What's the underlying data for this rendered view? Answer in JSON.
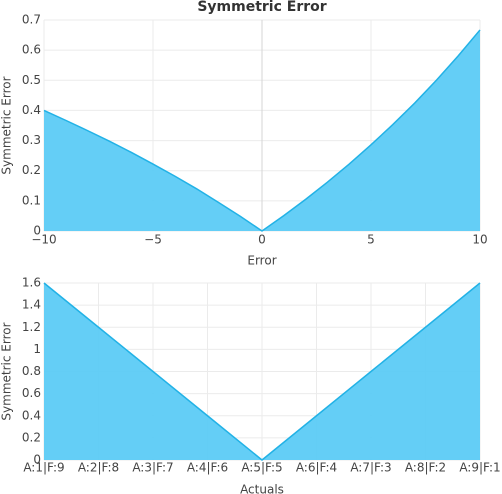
{
  "chart_data": [
    {
      "type": "area",
      "title": "Symmetric Error",
      "x_label": "Error",
      "y_label": "Symmetric Error",
      "x": [
        -10,
        -9,
        -8,
        -7,
        -6,
        -5,
        -4,
        -3,
        -2,
        -1,
        0,
        1,
        2,
        3,
        4,
        5,
        6,
        7,
        8,
        9,
        10
      ],
      "values": [
        0.4,
        0.367,
        0.333,
        0.298,
        0.261,
        0.222,
        0.182,
        0.14,
        0.095,
        0.049,
        0,
        0.051,
        0.105,
        0.162,
        0.222,
        0.286,
        0.353,
        0.424,
        0.5,
        0.581,
        0.667
      ],
      "color": "#5ccbf5",
      "line_color": "#22b2e6",
      "xlim": [
        -10,
        10
      ],
      "xticks": [
        {
          "value": -10,
          "label": "−10"
        },
        {
          "value": -5,
          "label": "−5"
        },
        0,
        5,
        10
      ],
      "ylim": [
        0,
        0.7
      ],
      "yticks": [
        0,
        0.1,
        0.2,
        0.3,
        0.4,
        0.5,
        0.6,
        0.7
      ],
      "grid": true
    },
    {
      "type": "area",
      "x_label": "Actuals",
      "y_label": "Symmetric Error",
      "categories": [
        "A:1|F:9",
        "A:2|F:8",
        "A:3|F:7",
        "A:4|F:6",
        "A:5|F:5",
        "A:6|F:4",
        "A:7|F:3",
        "A:8|F:2",
        "A:9|F:1"
      ],
      "values": [
        1.6,
        1.2,
        0.8,
        0.4,
        0,
        0.4,
        0.8,
        1.2,
        1.6
      ],
      "color": "#5ccbf5",
      "line_color": "#22b2e6",
      "ylim": [
        0,
        1.6
      ],
      "yticks": [
        0,
        0.2,
        0.4,
        0.6,
        0.8,
        1,
        1.2,
        1.4,
        1.6
      ],
      "grid": true
    }
  ]
}
